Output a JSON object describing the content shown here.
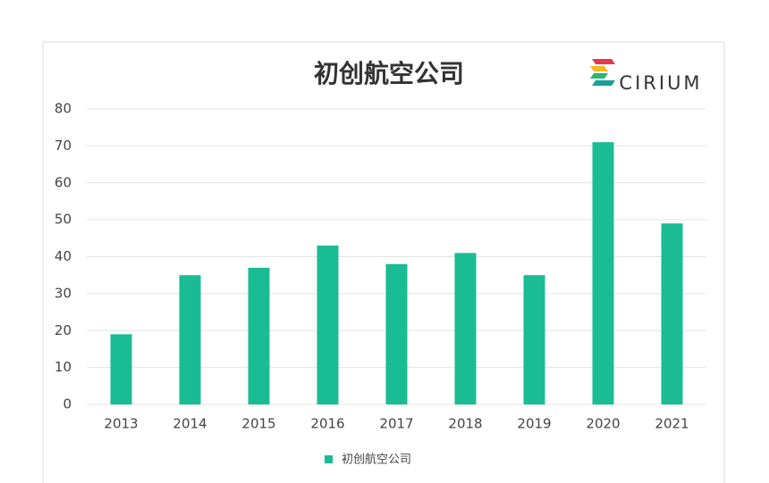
{
  "chart_data": {
    "type": "bar",
    "title": "初创航空公司",
    "brand": "CIRIUM",
    "categories": [
      "2013",
      "2014",
      "2015",
      "2016",
      "2017",
      "2018",
      "2019",
      "2020",
      "2021"
    ],
    "series": [
      {
        "name": "初创航空公司",
        "color": "#1abc94",
        "values": [
          19,
          35,
          37,
          43,
          38,
          41,
          35,
          71,
          49
        ]
      }
    ],
    "ylim": [
      0,
      80
    ],
    "yticks": [
      0,
      10,
      20,
      30,
      40,
      50,
      60,
      70,
      80
    ],
    "grid": true,
    "legend": "bottom"
  }
}
